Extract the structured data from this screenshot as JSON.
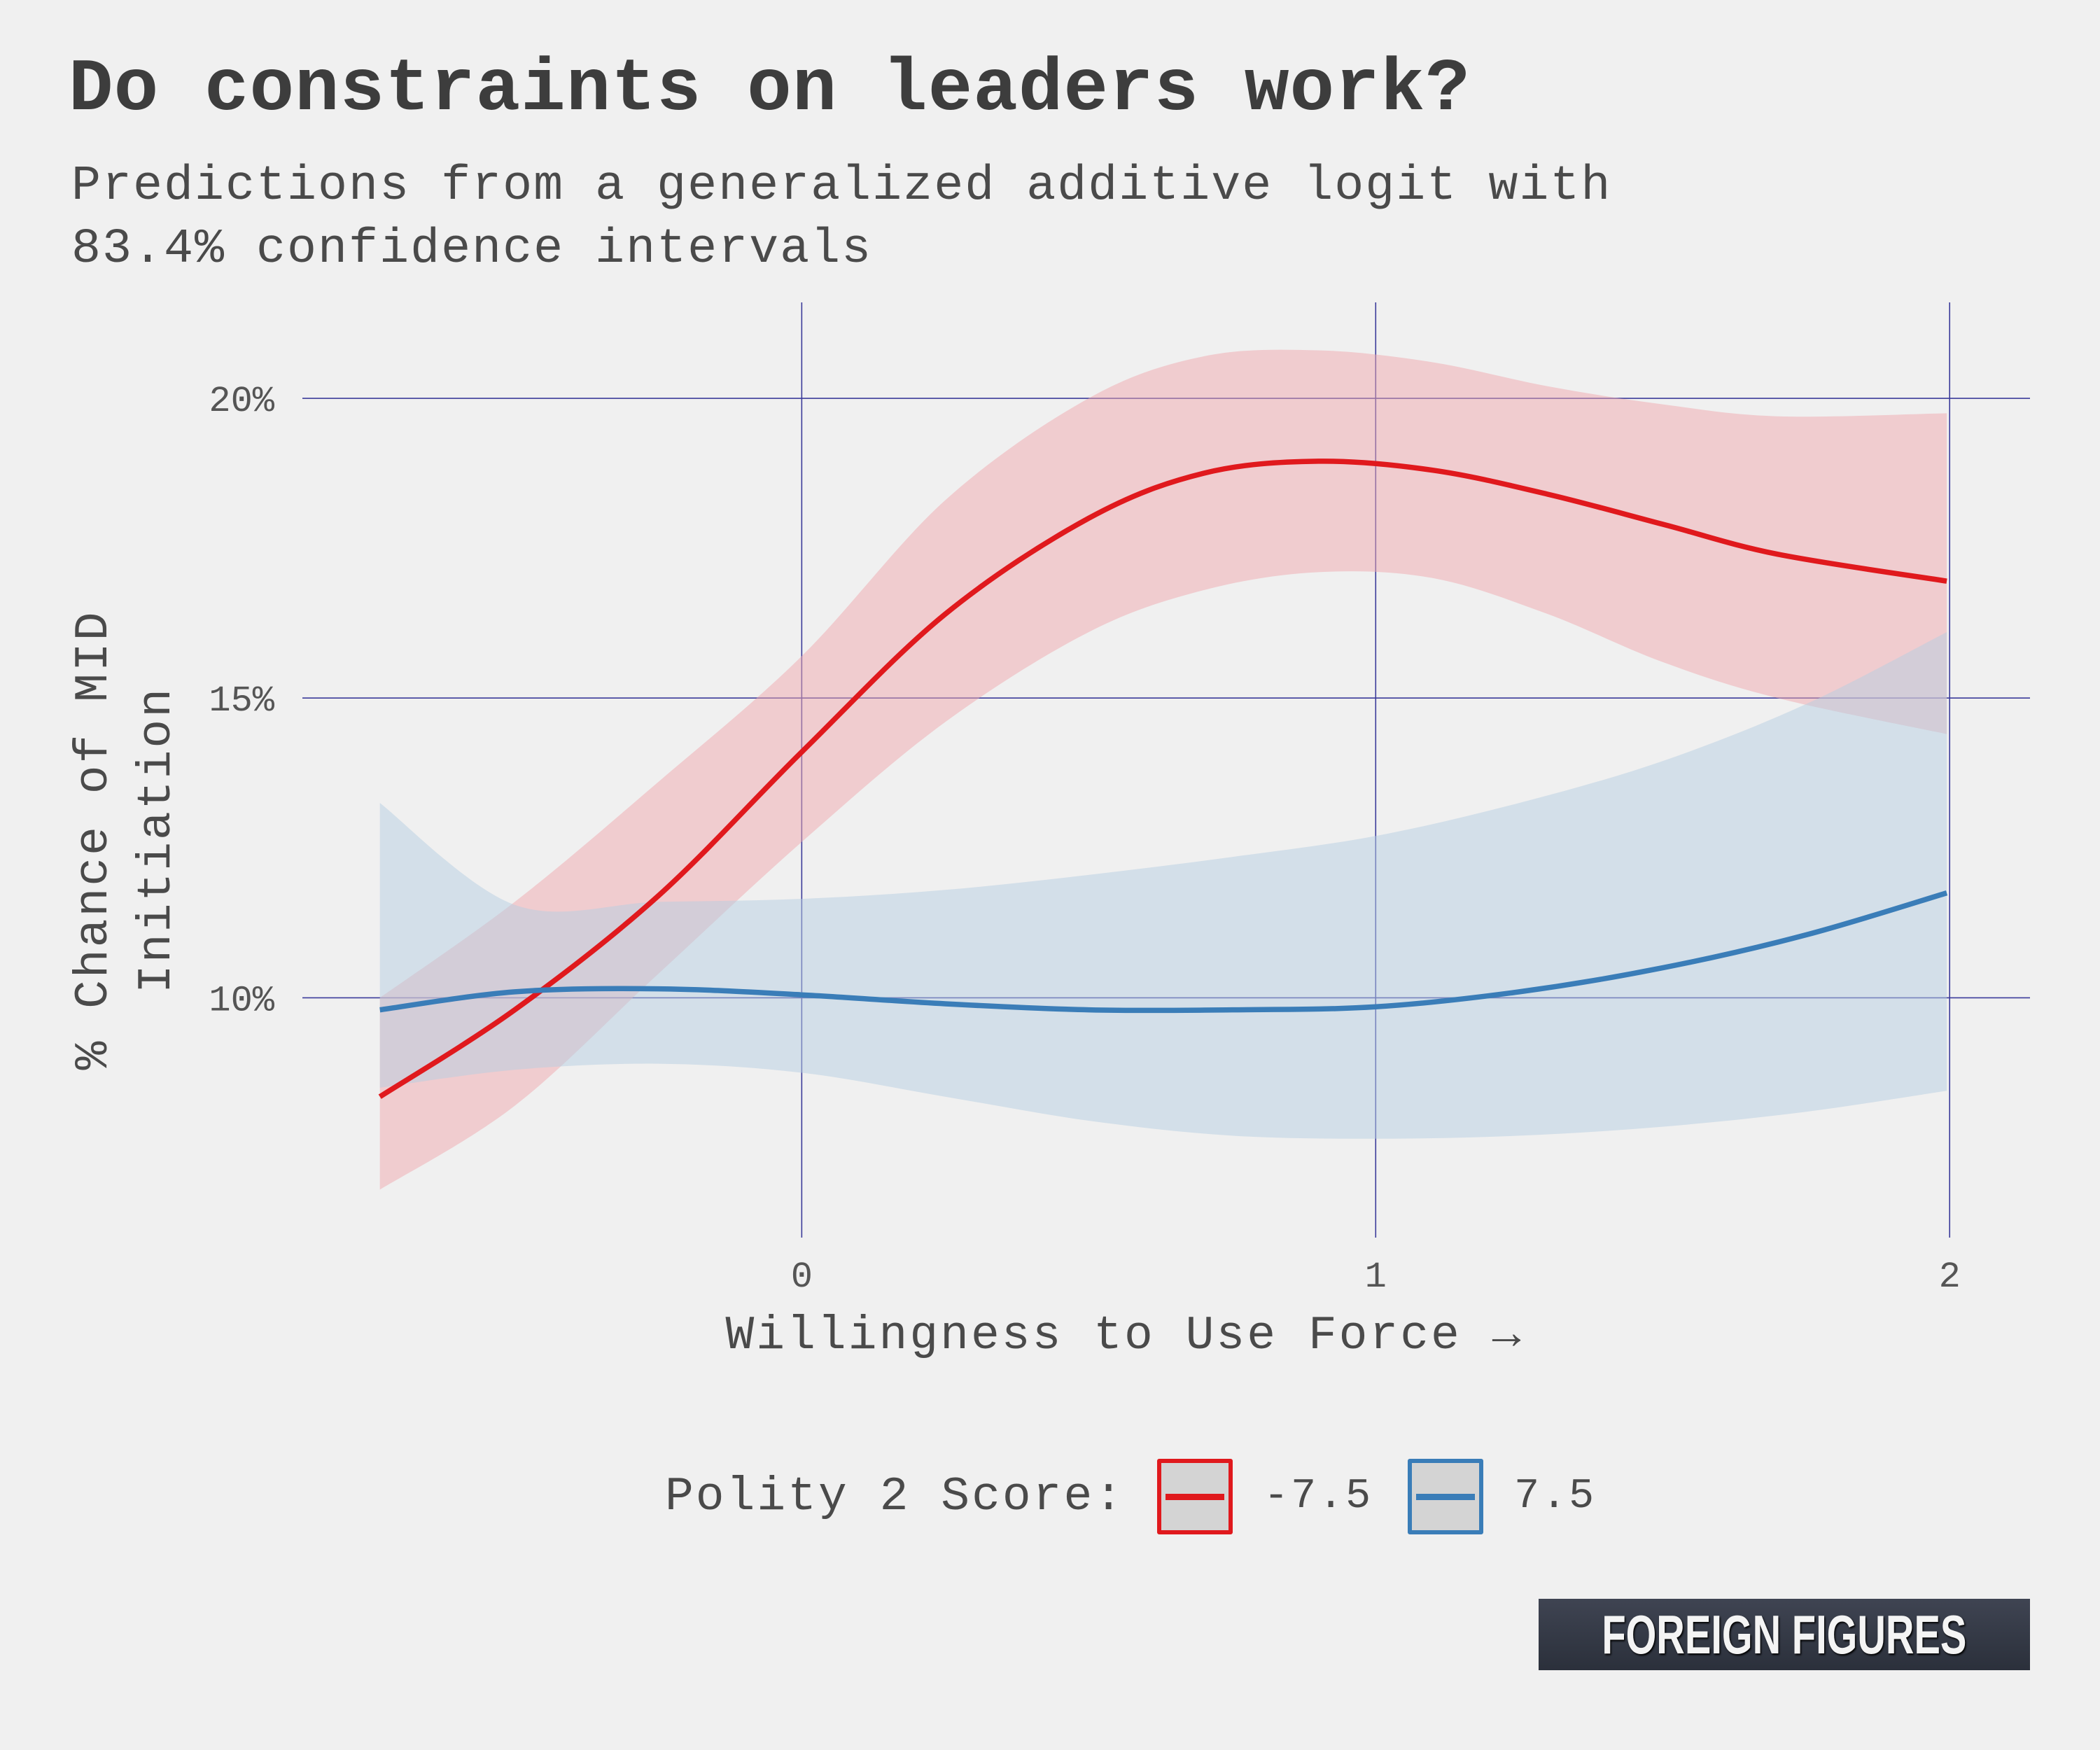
{
  "chart_data": {
    "type": "line",
    "title": "Do constraints on leaders work?",
    "subtitle_lines": [
      "Predictions from a generalized additive logit with",
      "83.4% confidence intervals"
    ],
    "xlabel": "Willingness to Use Force →",
    "ylabel": "% Chance of MID Initiation",
    "ylabel_lines": [
      "% Chance of MID",
      "Initiation"
    ],
    "x_ticks": [
      0,
      1,
      2
    ],
    "y_ticks": [
      10,
      15,
      20
    ],
    "y_tick_labels": [
      "10%",
      "15%",
      "20%"
    ],
    "xlim": [
      -0.87,
      2.14
    ],
    "ylim": [
      6.0,
      21.6
    ],
    "grid": true,
    "legend_title": "Polity 2 Score:",
    "legend_position": "bottom",
    "series": [
      {
        "name": "-7.5",
        "color": "#e0191d",
        "band_color": "#f0a8ad",
        "x": [
          -0.735,
          -0.5,
          -0.25,
          0.0,
          0.25,
          0.5,
          0.7,
          0.9,
          1.1,
          1.3,
          1.5,
          1.7,
          1.995
        ],
        "y": [
          8.35,
          9.8,
          11.7,
          14.1,
          16.4,
          18.0,
          18.75,
          18.95,
          18.8,
          18.4,
          17.9,
          17.4,
          16.95
        ],
        "lower": [
          6.8,
          8.2,
          10.4,
          12.6,
          14.6,
          16.1,
          16.8,
          17.1,
          17.0,
          16.4,
          15.6,
          15.0,
          14.4
        ],
        "upper": [
          10.0,
          11.6,
          13.6,
          15.7,
          18.3,
          20.0,
          20.7,
          20.8,
          20.6,
          20.2,
          19.9,
          19.7,
          19.75
        ]
      },
      {
        "name": "7.5",
        "color": "#3a7db8",
        "band_color": "#b6cde2",
        "x": [
          -0.735,
          -0.5,
          -0.25,
          0.0,
          0.25,
          0.5,
          0.75,
          1.0,
          1.25,
          1.5,
          1.75,
          1.995
        ],
        "y": [
          9.8,
          10.1,
          10.15,
          10.05,
          9.9,
          9.8,
          9.8,
          9.85,
          10.1,
          10.5,
          11.05,
          11.75
        ],
        "lower": [
          8.5,
          8.8,
          8.9,
          8.75,
          8.35,
          7.95,
          7.7,
          7.65,
          7.7,
          7.85,
          8.1,
          8.45
        ],
        "upper": [
          13.25,
          11.55,
          11.6,
          11.65,
          11.8,
          12.05,
          12.35,
          12.7,
          13.25,
          13.95,
          14.9,
          16.1
        ]
      }
    ]
  },
  "logo_text": "FOREIGN FIGURES"
}
